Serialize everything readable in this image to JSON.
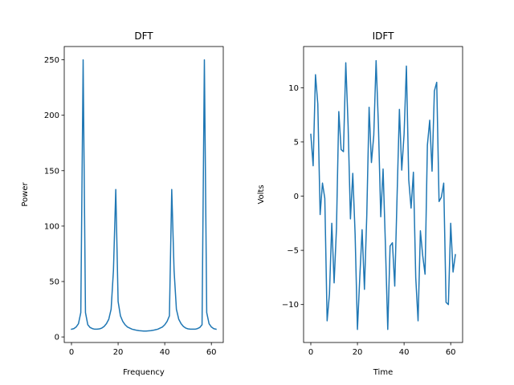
{
  "chart_data": [
    {
      "type": "line",
      "title": "DFT",
      "xlabel": "Frequency",
      "ylabel": "Power",
      "xlim": [
        -3.1,
        65.1
      ],
      "ylim": [
        -5,
        262
      ],
      "xticks": [
        0,
        20,
        40,
        60
      ],
      "yticks": [
        0,
        50,
        100,
        150,
        200,
        250
      ],
      "grid": false,
      "color": "#1f77b4",
      "series": [
        {
          "x": [
            0,
            1,
            2,
            3,
            4,
            5,
            6,
            7,
            8,
            9,
            10,
            11,
            12,
            13,
            14,
            15,
            16,
            17,
            18,
            19,
            20,
            21,
            22,
            23,
            24,
            25,
            26,
            27,
            28,
            29,
            30,
            31,
            32,
            33,
            34,
            35,
            36,
            37,
            38,
            39,
            40,
            41,
            42,
            43,
            44,
            45,
            46,
            47,
            48,
            49,
            50,
            51,
            52,
            53,
            54,
            55,
            56,
            57,
            58,
            59,
            60,
            61,
            62
          ],
          "values": [
            7,
            7.5,
            9,
            12,
            22,
            250,
            22,
            11,
            8.5,
            7.5,
            7,
            7,
            7.3,
            8,
            9.5,
            12,
            16,
            25,
            60,
            133,
            32,
            19,
            14,
            11,
            9,
            8,
            7,
            6.5,
            6,
            5.7,
            5.5,
            5.3,
            5.3,
            5.5,
            5.7,
            6,
            6.5,
            7,
            8,
            9,
            11,
            14,
            19,
            133,
            60,
            25,
            16,
            12,
            9.5,
            8,
            7.3,
            7,
            7,
            7,
            7.5,
            8.5,
            11,
            250,
            22,
            12,
            9,
            7.5,
            7
          ]
        }
      ]
    },
    {
      "type": "line",
      "title": "IDFT",
      "xlabel": "Time",
      "ylabel": "Volts",
      "xlim": [
        -3.1,
        65.1
      ],
      "ylim": [
        -13.5,
        13.8
      ],
      "xticks": [
        0,
        20,
        40,
        60
      ],
      "yticks": [
        -10,
        -5,
        0,
        5,
        10
      ],
      "ytick_labels": [
        "−10",
        "−5",
        "0",
        "5",
        "10"
      ],
      "grid": false,
      "color": "#1f77b4",
      "series": [
        {
          "x": [
            0,
            1,
            2,
            3,
            4,
            5,
            6,
            7,
            8,
            9,
            10,
            11,
            12,
            13,
            14,
            15,
            16,
            17,
            18,
            19,
            20,
            21,
            22,
            23,
            24,
            25,
            26,
            27,
            28,
            29,
            30,
            31,
            32,
            33,
            34,
            35,
            36,
            37,
            38,
            39,
            40,
            41,
            42,
            43,
            44,
            45,
            46,
            47,
            48,
            49,
            50,
            51,
            52,
            53,
            54,
            55,
            56,
            57,
            58,
            59,
            60,
            61,
            62
          ],
          "values": [
            5.7,
            2.8,
            11.2,
            8.5,
            -1.7,
            1.2,
            -0.2,
            -11.5,
            -9,
            -2.5,
            -8,
            -3,
            7.8,
            4.3,
            4.1,
            12.3,
            6.5,
            -2.1,
            2.1,
            -3.5,
            -12.3,
            -7.5,
            -3.1,
            -8.6,
            -1.8,
            8.2,
            3.1,
            5.6,
            12.5,
            6.5,
            -1.9,
            2.5,
            -4.5,
            -12.3,
            -4.6,
            -4.3,
            -8.3,
            0,
            8,
            2.4,
            5.7,
            12,
            1.5,
            -1.1,
            2.2,
            -7.5,
            -11.5,
            -3.2,
            -5.5,
            -7.2,
            4.7,
            7,
            2.3,
            9.7,
            10.5,
            -0.5,
            -0.1,
            1.2,
            -9.8,
            -10,
            -2.5,
            -7,
            -5.4
          ]
        }
      ]
    }
  ]
}
